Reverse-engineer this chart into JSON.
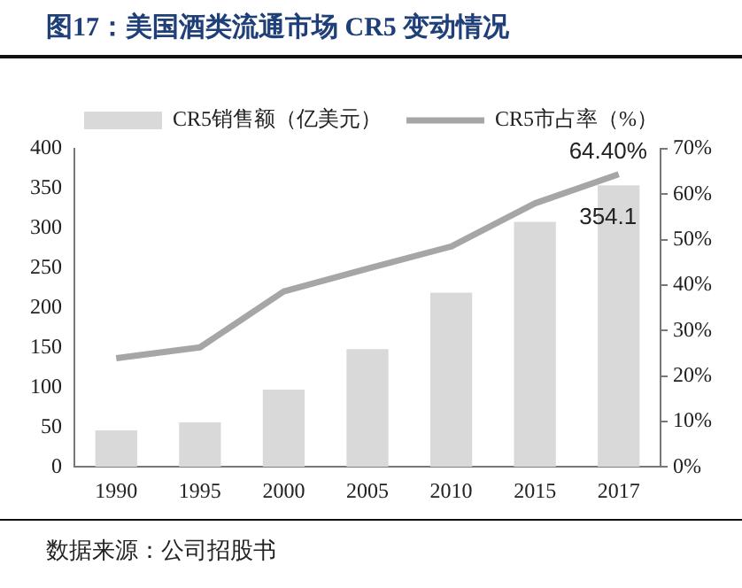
{
  "chart_data": {
    "type": "bar",
    "title": "图17：美国酒类流通市场 CR5 变动情况",
    "annotations": [
      "数据来源：公司招股书"
    ],
    "categories": [
      "1990",
      "1995",
      "2000",
      "2005",
      "2010",
      "2015",
      "2017"
    ],
    "series": [
      {
        "name": "CR5销售额（亿美元）",
        "color": "#d9d9d9",
        "values": [
          46,
          56,
          97,
          148,
          219,
          308,
          354.1
        ],
        "value_labels": [
          null,
          null,
          null,
          null,
          null,
          null,
          "354.1"
        ]
      },
      {
        "name": "CR5市占率（%）",
        "type": "line",
        "axis": "y2",
        "color": "#a6a6a6",
        "values": [
          23.9,
          26.3,
          38.6,
          43.6,
          48.5,
          58,
          64.4
        ],
        "value_labels": [
          null,
          null,
          null,
          null,
          null,
          null,
          "64.40%"
        ]
      }
    ],
    "ylim": [
      0,
      400
    ],
    "yticks": [
      0,
      50,
      100,
      150,
      200,
      250,
      300,
      350,
      400
    ],
    "y2lim": [
      0,
      70
    ],
    "y2ticks": [
      {
        "value": 0,
        "label": "0%"
      },
      {
        "value": 10,
        "label": "10%"
      },
      {
        "value": 20,
        "label": "20%"
      },
      {
        "value": 30,
        "label": "30%"
      },
      {
        "value": 40,
        "label": "40%"
      },
      {
        "value": 50,
        "label": "50%"
      },
      {
        "value": 60,
        "label": "60%"
      },
      {
        "value": 70,
        "label": "70%"
      }
    ],
    "grid": false,
    "legend": "top",
    "marker": "none"
  }
}
